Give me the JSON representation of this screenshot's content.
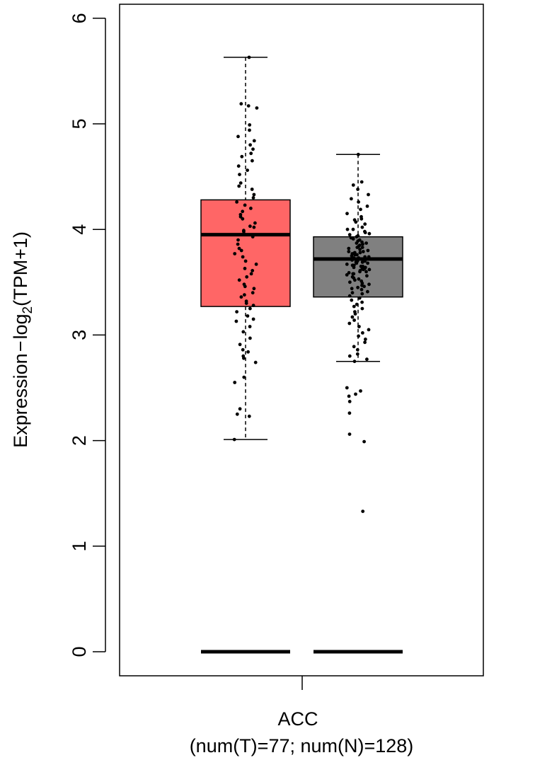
{
  "chart_data": {
    "type": "box",
    "ylabel_main": "Expression",
    "ylabel_dash": "−",
    "ylabel_log": "log",
    "ylabel_sub": "2",
    "ylabel_tail": "(TPM+1)",
    "ylim": [
      0,
      6
    ],
    "yticks": [
      "0",
      "1",
      "2",
      "3",
      "4",
      "5",
      "6"
    ],
    "categories": [
      "ACC"
    ],
    "xlabel_sub": "(num(T)=77; num(N)=128)",
    "colors": {
      "tumor": "#ff6666",
      "normal": "#808080"
    },
    "boxes": [
      {
        "group": "T",
        "whisker_low": 2.01,
        "q1": 3.27,
        "median": 3.95,
        "q3": 4.28,
        "whisker_high": 5.63
      },
      {
        "group": "N",
        "whisker_low": 2.75,
        "q1": 3.36,
        "median": 3.72,
        "q3": 3.93,
        "whisker_high": 4.71
      }
    ],
    "points_tumor": [
      5.63,
      5.19,
      5.17,
      5.15,
      4.99,
      4.94,
      4.88,
      4.84,
      4.8,
      4.76,
      4.72,
      4.69,
      4.65,
      4.6,
      4.56,
      4.52,
      4.41,
      4.38,
      4.33,
      4.3,
      4.26,
      4.23,
      4.2,
      4.17,
      4.14,
      4.1,
      4.06,
      4.02,
      3.98,
      3.96,
      3.93,
      3.9,
      3.86,
      3.8,
      3.74,
      3.7,
      3.67,
      3.63,
      3.58,
      3.52,
      3.48,
      3.44,
      3.4,
      3.36,
      3.32,
      3.28,
      3.25,
      3.22,
      3.18,
      3.13,
      3.08,
      3.03,
      2.97,
      2.91,
      2.86,
      2.8,
      2.78,
      2.74,
      2.6,
      2.55,
      2.3,
      2.25,
      2.23,
      2.01,
      4.44,
      4.12,
      3.99,
      3.82,
      3.61,
      3.46,
      3.3,
      3.15,
      2.84,
      4.03,
      3.77,
      3.55,
      3.38
    ],
    "points_normal": [
      4.71,
      4.45,
      4.42,
      4.38,
      4.33,
      4.29,
      4.26,
      4.22,
      4.19,
      4.15,
      4.12,
      4.1,
      4.07,
      4.05,
      4.02,
      4.0,
      3.98,
      3.96,
      3.94,
      3.92,
      3.9,
      3.88,
      3.87,
      3.85,
      3.83,
      3.82,
      3.8,
      3.79,
      3.77,
      3.76,
      3.74,
      3.73,
      3.72,
      3.71,
      3.7,
      3.69,
      3.68,
      3.67,
      3.66,
      3.65,
      3.64,
      3.63,
      3.62,
      3.61,
      3.6,
      3.58,
      3.57,
      3.55,
      3.53,
      3.51,
      3.49,
      3.47,
      3.45,
      3.43,
      3.41,
      3.39,
      3.37,
      3.35,
      3.33,
      3.31,
      3.29,
      3.27,
      3.25,
      3.22,
      3.2,
      3.17,
      3.14,
      3.11,
      3.08,
      3.05,
      3.02,
      2.99,
      2.96,
      2.93,
      2.89,
      2.86,
      2.82,
      2.8,
      2.77,
      2.75,
      2.5,
      2.47,
      2.44,
      2.42,
      2.37,
      2.26,
      2.06,
      1.99,
      1.33,
      3.86,
      3.78,
      3.75,
      3.7,
      3.68,
      3.64,
      3.59,
      3.56,
      3.52,
      3.48,
      3.44,
      3.4,
      3.81,
      3.74,
      3.66,
      3.62,
      3.54,
      3.97,
      3.91,
      3.84,
      3.79,
      3.73,
      3.69,
      3.63,
      3.58,
      3.5,
      3.46,
      4.0,
      3.95,
      3.89,
      3.83,
      3.76,
      3.71,
      3.65,
      3.6,
      4.09,
      3.93,
      3.87,
      3.78
    ],
    "zero_counts": {
      "tumor": 0,
      "normal": 0
    },
    "grid": false,
    "legend": "none"
  }
}
